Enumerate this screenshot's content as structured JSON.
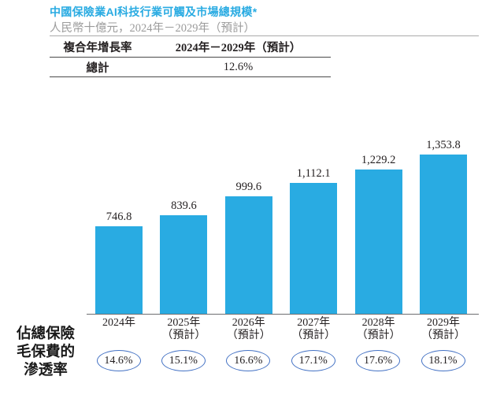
{
  "header": {
    "title": "中國保險業AI科技行業可觸及市場總規模*",
    "subtitle": "人民幣十億元，2024年－2029年（預計）"
  },
  "cagr_table": {
    "metric_header": "複合年增長率",
    "period_header": "2024年－2029年（預計）",
    "row_metric": "總計",
    "row_value": "12.6%"
  },
  "penetration": {
    "label": "佔總保險\n毛保費的\n滲透率"
  },
  "colors": {
    "bar": "#29abe2",
    "title": "#29abe2",
    "subtitle": "#9b9b9b",
    "oval_stroke": "#4472c4",
    "axis": "#6d6e71"
  },
  "chart_data": {
    "type": "bar",
    "title": "中國保險業AI科技行業可觸及市場總規模*",
    "subtitle": "人民幣十億元，2024年－2029年（預計）",
    "unit": "人民幣十億元",
    "categories": [
      "2024年",
      "2025年（預計）",
      "2026年（預計）",
      "2027年（預計）",
      "2028年（預計）",
      "2029年（預計）"
    ],
    "x_tick_lines": [
      [
        "2024年",
        ""
      ],
      [
        "2025年",
        "（預計）"
      ],
      [
        "2026年",
        "（預計）"
      ],
      [
        "2027年",
        "（預計）"
      ],
      [
        "2028年",
        "（預計）"
      ],
      [
        "2029年",
        "（預計）"
      ]
    ],
    "values": [
      746.8,
      839.6,
      999.6,
      1112.1,
      1229.2,
      1353.8
    ],
    "value_labels": [
      "746.8",
      "839.6",
      "999.6",
      "1,112.1",
      "1,229.2",
      "1,353.8"
    ],
    "secondary_series": {
      "name": "佔總保險毛保費的滲透率",
      "values": [
        14.6,
        15.1,
        16.6,
        17.1,
        17.6,
        18.1
      ],
      "labels": [
        "14.6%",
        "15.1%",
        "16.6%",
        "17.1%",
        "17.6%",
        "18.1%"
      ]
    },
    "cagr": {
      "metric": "總計",
      "period": "2024年－2029年（預計）",
      "value": "12.6%"
    },
    "ylim": [
      0,
      1400
    ],
    "grid": false,
    "legend": "none",
    "bar_color": "#29abe2"
  }
}
